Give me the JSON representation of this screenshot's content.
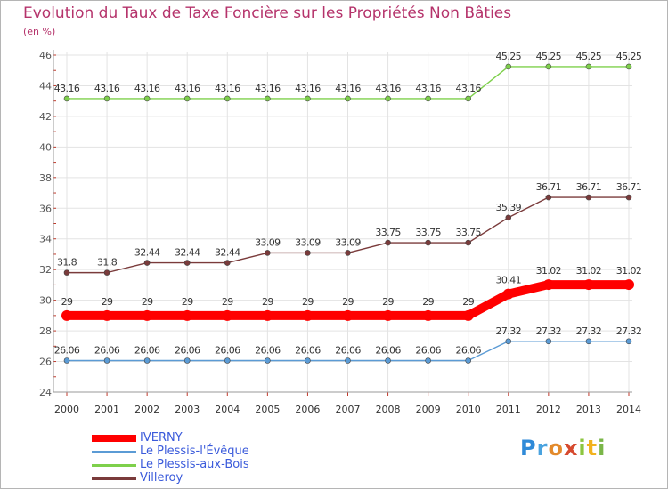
{
  "chart_data": {
    "type": "line",
    "title": "Evolution du Taux de Taxe Foncière sur les Propriétés Non Bâties",
    "subtitle": "(en %)",
    "x": [
      "2000",
      "2001",
      "2002",
      "2003",
      "2004",
      "2005",
      "2006",
      "2007",
      "2008",
      "2009",
      "2010",
      "2011",
      "2012",
      "2013",
      "2014"
    ],
    "ylim": [
      24,
      46
    ],
    "yticks": [
      24,
      26,
      28,
      30,
      32,
      34,
      36,
      38,
      40,
      42,
      44,
      46
    ],
    "grid": true,
    "legend_position": "bottom-left",
    "series": [
      {
        "name": "IVERNY",
        "color": "#ff0000",
        "labels": [
          "29",
          "29",
          "29",
          "29",
          "29",
          "29",
          "29",
          "29",
          "29",
          "29",
          "29",
          "30.41",
          "31.02",
          "31.02",
          "31.02"
        ],
        "values": [
          29,
          29,
          29,
          29,
          29,
          29,
          29,
          29,
          29,
          29,
          29,
          30.41,
          31.02,
          31.02,
          31.02
        ]
      },
      {
        "name": "Le Plessis-l'Évêque",
        "color": "#5b9bd5",
        "labels": [
          "26.06",
          "26.06",
          "26.06",
          "26.06",
          "26.06",
          "26.06",
          "26.06",
          "26.06",
          "26.06",
          "26.06",
          "26.06",
          "27.32",
          "27.32",
          "27.32",
          "27.32"
        ],
        "values": [
          26.06,
          26.06,
          26.06,
          26.06,
          26.06,
          26.06,
          26.06,
          26.06,
          26.06,
          26.06,
          26.06,
          27.32,
          27.32,
          27.32,
          27.32
        ]
      },
      {
        "name": "Le Plessis-aux-Bois",
        "color": "#7ed04b",
        "labels": [
          "43.16",
          "43.16",
          "43.16",
          "43.16",
          "43.16",
          "43.16",
          "43.16",
          "43.16",
          "43.16",
          "43.16",
          "43.16",
          "45.25",
          "45.25",
          "45.25",
          "45.25"
        ],
        "values": [
          43.16,
          43.16,
          43.16,
          43.16,
          43.16,
          43.16,
          43.16,
          43.16,
          43.16,
          43.16,
          43.16,
          45.25,
          45.25,
          45.25,
          45.25
        ]
      },
      {
        "name": "Villeroy",
        "color": "#7a3b3b",
        "labels": [
          "31.8",
          "31.8",
          "32.44",
          "32.44",
          "32.44",
          "33.09",
          "33.09",
          "33.09",
          "33.75",
          "33.75",
          "33.75",
          "35.39",
          "36.71",
          "36.71",
          "36.71"
        ],
        "values": [
          31.8,
          31.8,
          32.44,
          32.44,
          32.44,
          33.09,
          33.09,
          33.09,
          33.75,
          33.75,
          33.75,
          35.39,
          36.71,
          36.71,
          36.71
        ]
      }
    ]
  },
  "logo_text": "Proxiti"
}
